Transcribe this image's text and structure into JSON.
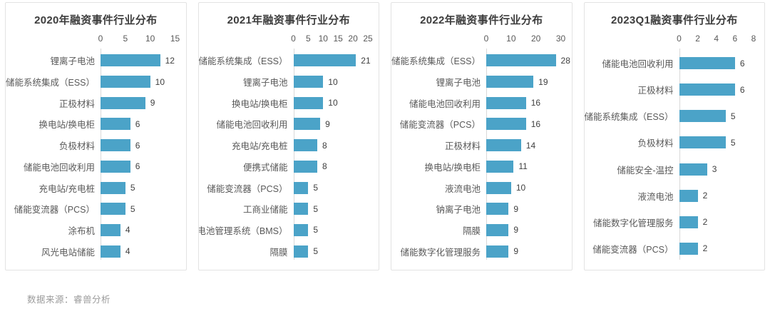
{
  "accent_color": "#4ba3c8",
  "source_note": "数据来源：睿兽分析",
  "chart_data": [
    {
      "type": "bar",
      "orientation": "horizontal",
      "title": "2020年融资事件行业分布",
      "xlim": [
        0,
        15
      ],
      "xticks": [
        0,
        5,
        10,
        15
      ],
      "grid": false,
      "legend": false,
      "categories": [
        "锂离子电池",
        "储能系统集成（ESS）",
        "正极材料",
        "换电站/换电柜",
        "负极材料",
        "储能电池回收利用",
        "充电站/充电桩",
        "储能变流器（PCS）",
        "涂布机",
        "风光电站储能"
      ],
      "values": [
        12,
        10,
        9,
        6,
        6,
        6,
        5,
        5,
        4,
        4
      ]
    },
    {
      "type": "bar",
      "orientation": "horizontal",
      "title": "2021年融资事件行业分布",
      "xlim": [
        0,
        25
      ],
      "xticks": [
        0,
        5,
        10,
        15,
        20,
        25
      ],
      "grid": false,
      "legend": false,
      "categories": [
        "储能系统集成（ESS）",
        "锂离子电池",
        "换电站/换电柜",
        "储能电池回收利用",
        "充电站/充电桩",
        "便携式储能",
        "储能变流器（PCS）",
        "工商业储能",
        "电池管理系统（BMS）",
        "隔膜"
      ],
      "values": [
        21,
        10,
        10,
        9,
        8,
        8,
        5,
        5,
        5,
        5
      ]
    },
    {
      "type": "bar",
      "orientation": "horizontal",
      "title": "2022年融资事件行业分布",
      "xlim": [
        0,
        30
      ],
      "xticks": [
        0,
        10,
        20,
        30
      ],
      "grid": false,
      "legend": false,
      "categories": [
        "储能系统集成（ESS）",
        "锂离子电池",
        "储能电池回收利用",
        "储能变流器（PCS）",
        "正极材料",
        "换电站/换电柜",
        "液流电池",
        "钠离子电池",
        "隔膜",
        "储能数字化管理服务"
      ],
      "values": [
        28,
        19,
        16,
        16,
        14,
        11,
        10,
        9,
        9,
        9
      ]
    },
    {
      "type": "bar",
      "orientation": "horizontal",
      "title": "2023Q1融资事件行业分布",
      "xlim": [
        0,
        8
      ],
      "xticks": [
        0,
        2,
        4,
        6,
        8
      ],
      "grid": false,
      "legend": false,
      "categories": [
        "储能电池回收利用",
        "正极材料",
        "储能系统集成（ESS）",
        "负极材料",
        "储能安全-温控",
        "液流电池",
        "储能数字化管理服务",
        "储能变流器（PCS）"
      ],
      "values": [
        6,
        6,
        5,
        5,
        3,
        2,
        2,
        2
      ]
    }
  ]
}
